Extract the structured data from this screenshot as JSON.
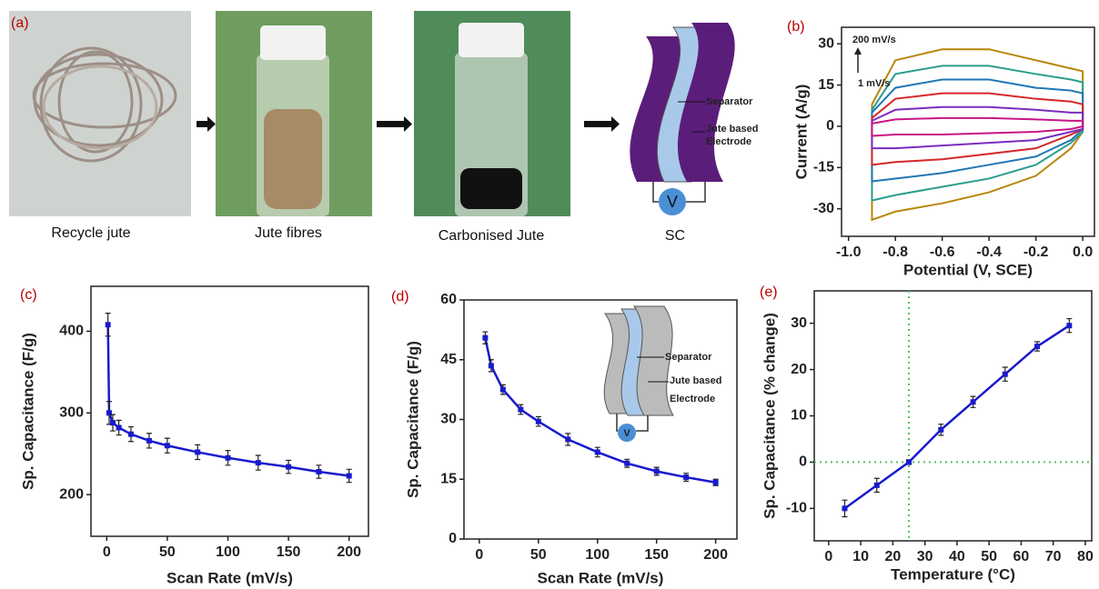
{
  "panel_a": {
    "label": "(a)",
    "captions": [
      "Recycle jute",
      "Jute fibres",
      "Carbonised Jute",
      "SC"
    ],
    "schematic": {
      "separator": "Separator",
      "electrode_1": "Jute based",
      "electrode_2": "Electrode",
      "meter": "V"
    }
  },
  "chart_data": [
    {
      "type": "cv",
      "label": "(b)",
      "xlabel": "Potential (V, SCE)",
      "ylabel": "Current (A/g)",
      "annotations": [
        "200 mV/s",
        "1 mV/s"
      ],
      "x": [
        -0.9,
        -0.8,
        -0.6,
        -0.4,
        -0.2,
        -0.05,
        0,
        0,
        -0.05,
        -0.2,
        -0.4,
        -0.6,
        -0.8,
        -0.9
      ],
      "series": [
        {
          "color": "#b8860b",
          "values": [
            8,
            24,
            28,
            28,
            24,
            21,
            20,
            -2,
            -8,
            -18,
            -24,
            -28,
            -31,
            -34
          ]
        },
        {
          "color": "#2a9d8f",
          "values": [
            6,
            19,
            22,
            22,
            19,
            17,
            16,
            -2,
            -6,
            -14,
            -19,
            -22,
            -25,
            -27
          ]
        },
        {
          "color": "#1f77b4",
          "values": [
            5,
            14,
            17,
            17,
            14,
            13,
            12,
            -1,
            -5,
            -11,
            -14,
            -17,
            -19,
            -20
          ]
        },
        {
          "color": "#d62728",
          "values": [
            3,
            10,
            12,
            12,
            10,
            9,
            8,
            -1,
            -3,
            -8,
            -10,
            -12,
            -13,
            -14
          ]
        },
        {
          "color": "#7b2cbf",
          "values": [
            2,
            6,
            7,
            7,
            6,
            5,
            5,
            -1,
            -2,
            -5,
            -6,
            -7,
            -8,
            -8
          ]
        },
        {
          "color": "#c71585",
          "values": [
            1,
            2.5,
            3,
            3,
            2.5,
            2,
            2,
            0,
            -1,
            -2,
            -2.5,
            -3,
            -3,
            -3.5
          ]
        }
      ],
      "xlim": [
        -1.03,
        0.05
      ],
      "xticks": [
        {
          "value": -1,
          "label": "-1.0"
        },
        -0.8,
        -0.6,
        -0.4,
        -0.2,
        {
          "value": 0,
          "label": "0.0"
        }
      ],
      "ylim": [
        -40,
        36
      ],
      "yticks": [
        -30,
        -15,
        0,
        15,
        30
      ]
    },
    {
      "type": "line",
      "label": "(c)",
      "xlabel": "Scan Rate (mV/s)",
      "ylabel": "Sp. Capacitance (F/g)",
      "x": [
        1,
        2,
        5,
        10,
        20,
        35,
        50,
        75,
        100,
        125,
        150,
        175,
        200
      ],
      "series": [
        {
          "color": "#1a1acc",
          "values": [
            408,
            300,
            288,
            282,
            274,
            266,
            260,
            252,
            245,
            239,
            234,
            228,
            223
          ],
          "errors": [
            14,
            14,
            10,
            9,
            9,
            9,
            9,
            9,
            9,
            9,
            8,
            8,
            8
          ]
        }
      ],
      "xlim": [
        -13,
        216
      ],
      "xticks": [
        0,
        50,
        100,
        150,
        200
      ],
      "ylim": [
        149,
        455
      ],
      "yticks": [
        200,
        300,
        400
      ]
    },
    {
      "type": "line",
      "label": "(d)",
      "xlabel": "Scan Rate (mV/s)",
      "ylabel": "Sp. Capacitance (F/g)",
      "inset": {
        "separator": "Separator",
        "electrode_1": "Jute based",
        "electrode_2": "Electrode",
        "meter": "V"
      },
      "x": [
        5,
        10,
        20,
        35,
        50,
        75,
        100,
        125,
        150,
        175,
        200
      ],
      "series": [
        {
          "color": "#1a1acc",
          "values": [
            50.5,
            43.5,
            37.5,
            32.5,
            29.5,
            25,
            21.8,
            19,
            17,
            15.5,
            14.2
          ],
          "errors": [
            1.5,
            1.5,
            1.2,
            1.2,
            1.2,
            1.5,
            1.2,
            1,
            1,
            1,
            0.8
          ]
        }
      ],
      "xlim": [
        -13,
        218
      ],
      "xticks": [
        0,
        50,
        100,
        150,
        200
      ],
      "ylim": [
        0,
        60
      ],
      "yticks": [
        0,
        15,
        30,
        45,
        60
      ]
    },
    {
      "type": "line",
      "label": "(e)",
      "xlabel": "Temperature (°C)",
      "ylabel": "Sp. Capacitance (% change)",
      "x": [
        5,
        15,
        25,
        35,
        45,
        55,
        65,
        75
      ],
      "series": [
        {
          "color": "#1a1acc",
          "values": [
            -10,
            -5,
            0,
            7,
            13,
            19,
            25,
            29.5
          ],
          "errors": [
            1.8,
            1.5,
            0.5,
            1.2,
            1.2,
            1.5,
            1,
            1.5
          ]
        }
      ],
      "ref_x": 25,
      "ref_y": 0,
      "ref_color": "#5cbf5c",
      "xlim": [
        -4.5,
        82
      ],
      "xticks": [
        0,
        10,
        20,
        30,
        40,
        50,
        60,
        70,
        80
      ],
      "ylim": [
        -17,
        37
      ],
      "yticks": [
        -10,
        0,
        10,
        20,
        30
      ]
    }
  ]
}
